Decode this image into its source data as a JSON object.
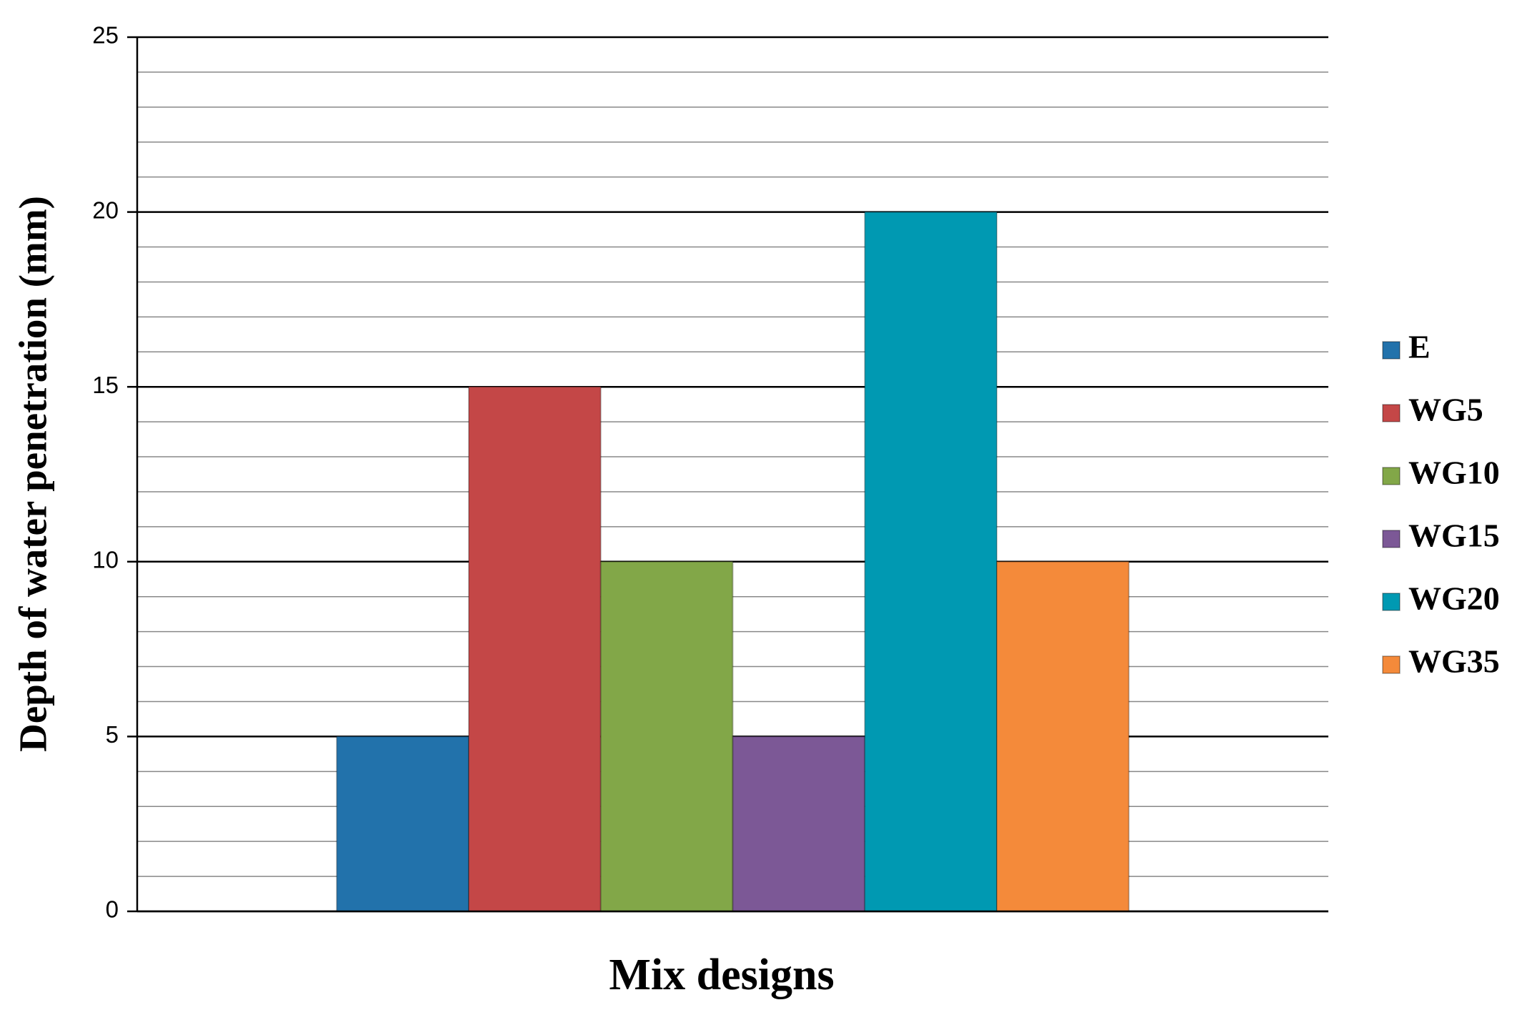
{
  "chart_data": {
    "type": "bar",
    "y_label": "Depth of water penetration (mm)",
    "x_label": "Mix designs",
    "categories": [
      null
    ],
    "series": [
      {
        "name": "E",
        "color": "#2272ab",
        "values": [
          5
        ]
      },
      {
        "name": "WG5",
        "color": "#c44747",
        "values": [
          15
        ]
      },
      {
        "name": "WG10",
        "color": "#82a748",
        "values": [
          10
        ]
      },
      {
        "name": "WG15",
        "color": "#7c5896",
        "values": [
          5
        ]
      },
      {
        "name": "WG20",
        "color": "#0099b2",
        "values": [
          20
        ]
      },
      {
        "name": "WG35",
        "color": "#f48a3a",
        "values": [
          10
        ]
      }
    ],
    "ylim": [
      0,
      25
    ],
    "yticks": [
      0,
      5,
      10,
      15,
      20,
      25
    ],
    "minor_yticks": [
      1,
      2,
      3,
      4,
      6,
      7,
      8,
      9,
      11,
      12,
      13,
      14,
      16,
      17,
      18,
      19,
      21,
      22,
      23,
      24
    ],
    "grid": true,
    "legend": "right"
  }
}
